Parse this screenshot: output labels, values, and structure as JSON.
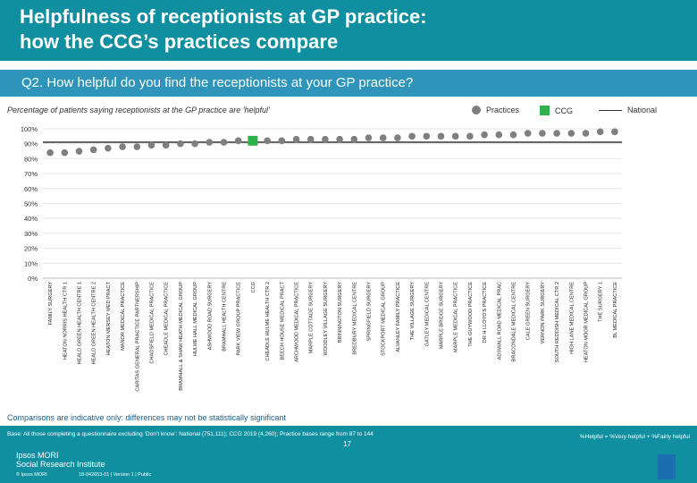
{
  "header": {
    "title": "Helpfulness of receptionists at GP practice:\nhow the CCG’s practices compare"
  },
  "question": "Q2. How helpful do you find the receptionists at your GP practice?",
  "subtitle": "Percentage of patients saying receptionists at the GP practice are 'helpful'",
  "legend": {
    "practices": "Practices",
    "ccg": "CCG",
    "national": "National"
  },
  "colors": {
    "header": "#0f8fa0",
    "question_bar": "#2e94b9",
    "practice": "#7f7f7f",
    "ccg": "#2db34a",
    "national": "#333333"
  },
  "chart_data": {
    "type": "scatter",
    "title": "Percentage of patients saying receptionists at the GP practice are 'helpful'",
    "ylim": [
      0,
      100
    ],
    "yticks": [
      "0%",
      "10%",
      "20%",
      "30%",
      "40%",
      "50%",
      "60%",
      "70%",
      "80%",
      "90%",
      "100%"
    ],
    "national_value": 91,
    "categories": [
      "FAMILY SURGERY",
      "HEATON NORRIS HEALTH CTR 1",
      "HEALD GREEN HEALTH CENTRE 1",
      "HEALD GREEN HEALTH CENTRE 2",
      "HEATON MERSEY MED PRACT",
      "MANOR MEDICAL PRACTICE",
      "CARITAS GENERAL PRACTICE PARTNERSHIP",
      "CHADSFIELD MEDICAL PRACTICE",
      "CHEADLE MEDICAL PRACTICE",
      "BRAMHALL & SHAW HEATH MEDICAL GROUP",
      "HULME HALL MEDICAL GROUP",
      "ASHWOOD ROAD SURGERY",
      "BRAMHALL HEALTH CENTRE",
      "PARK VIEW GROUP PRACTICE",
      "CCG",
      "CHEADLE HULME HEALTH CTR 2",
      "BEECH HOUSE MEDICAL PRACT",
      "ARCHWOOD MEDICAL PRACTICE",
      "MARPLE COTTAGE SURGERY",
      "WOODLEY VILLAGE SURGERY",
      "BRINNINGTON SURGERY",
      "BREDBURY MEDICAL CENTRE",
      "SPRINGFIELD SURGERY",
      "STOCKPORT MEDICAL GROUP",
      "ALVANLEY FAMILY PRACTICE",
      "THE VILLAGE SURGERY",
      "GATLEY MEDICAL CENTRE",
      "MARPLE BRIDGE SURGERY",
      "MARPLE MEDICAL PRACTICE",
      "THE GUYWOOD PRACTICE",
      "DR H LLOYD'S PRACTICE",
      "ADSWALL ROAD MEDICAL PRAC",
      "BRACONDALE MEDICAL CENTRE",
      "CALE GREEN SURGERY",
      "VERNON PARK SURGERY",
      "SOUTH REDDISH MEDICAL CTR 2",
      "HIGH LANE MEDICAL CENTRE",
      "HEATON MOOR MEDICAL GROUP",
      "THE SURGERY 1",
      "BL MEDICAL PRACTICE"
    ],
    "values": [
      84,
      84,
      85,
      86,
      87,
      88,
      88,
      89,
      89,
      90,
      90,
      91,
      91,
      92,
      92,
      92,
      92,
      93,
      93,
      93,
      93,
      93,
      94,
      94,
      94,
      95,
      95,
      95,
      95,
      95,
      96,
      96,
      96,
      97,
      97,
      97,
      97,
      97,
      98,
      98
    ],
    "ccg_index": 14
  },
  "note": "Comparisons are indicative only: differences may not be statistically significant",
  "footer": {
    "base": "Base: All those completing a questionnaire excluding ‘Don’t know’: National (751,111); CCG 2019 (4,260); Practice bases range from 87 to 144",
    "definition": "%Helpful = %Very helpful + %Fairly helpful",
    "page": "17",
    "logo": "Ipsos MORI\nSocial Research Institute",
    "copyright": "© Ipsos MORI",
    "job": "18-042653-01 | Version 1 | Public"
  }
}
